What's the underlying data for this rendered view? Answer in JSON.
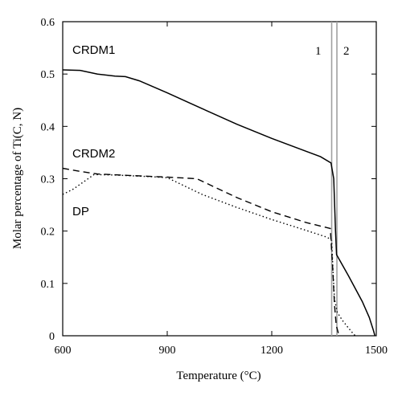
{
  "chart_data": {
    "type": "line",
    "xlabel": "Temperature (°C)",
    "ylabel": "Molar percentage of Ti(C, N)",
    "xlim": [
      600,
      1500
    ],
    "ylim": [
      0,
      0.6
    ],
    "xticks": [
      600,
      900,
      1200,
      1500
    ],
    "xtick_labels": [
      "600",
      "900",
      "1200",
      "1500"
    ],
    "yticks": [
      0,
      0.1,
      0.2,
      0.3,
      0.4,
      0.5,
      0.6
    ],
    "ytick_labels": [
      "0",
      "0.1",
      "0.2",
      "0.3",
      "0.4",
      "0.5",
      "0.6"
    ],
    "grid": false,
    "colors": {
      "axis": "#000000",
      "series": "#000000",
      "vline": "#a0a0a0"
    },
    "series": [
      {
        "name": "CRDM1",
        "style": "solid",
        "points": [
          [
            600,
            0.508
          ],
          [
            650,
            0.507
          ],
          [
            700,
            0.5
          ],
          [
            750,
            0.496
          ],
          [
            780,
            0.495
          ],
          [
            820,
            0.487
          ],
          [
            900,
            0.464
          ],
          [
            1000,
            0.434
          ],
          [
            1100,
            0.404
          ],
          [
            1200,
            0.377
          ],
          [
            1300,
            0.352
          ],
          [
            1340,
            0.342
          ],
          [
            1370,
            0.33
          ],
          [
            1378,
            0.3
          ],
          [
            1383,
            0.2
          ],
          [
            1386,
            0.155
          ],
          [
            1420,
            0.115
          ],
          [
            1460,
            0.065
          ],
          [
            1480,
            0.035
          ],
          [
            1492,
            0.01
          ],
          [
            1496,
            0
          ]
        ]
      },
      {
        "name": "CRDM2",
        "style": "dashed",
        "points": [
          [
            600,
            0.32
          ],
          [
            650,
            0.314
          ],
          [
            700,
            0.309
          ],
          [
            800,
            0.306
          ],
          [
            900,
            0.303
          ],
          [
            985,
            0.3
          ],
          [
            1100,
            0.264
          ],
          [
            1200,
            0.237
          ],
          [
            1300,
            0.216
          ],
          [
            1368,
            0.205
          ],
          [
            1375,
            0.13
          ],
          [
            1380,
            0.06
          ],
          [
            1385,
            0.02
          ],
          [
            1392,
            0.003
          ],
          [
            1396,
            0
          ]
        ]
      },
      {
        "name": "DP",
        "style": "dotted",
        "points": [
          [
            600,
            0.27
          ],
          [
            630,
            0.28
          ],
          [
            690,
            0.308
          ],
          [
            750,
            0.307
          ],
          [
            850,
            0.304
          ],
          [
            900,
            0.302
          ],
          [
            1000,
            0.27
          ],
          [
            1100,
            0.245
          ],
          [
            1200,
            0.222
          ],
          [
            1300,
            0.201
          ],
          [
            1360,
            0.188
          ],
          [
            1372,
            0.182
          ],
          [
            1376,
            0.12
          ],
          [
            1380,
            0.07
          ],
          [
            1388,
            0.045
          ],
          [
            1402,
            0.03
          ],
          [
            1420,
            0.015
          ],
          [
            1435,
            0.003
          ],
          [
            1440,
            0
          ]
        ]
      }
    ],
    "vertical_lines": [
      {
        "x": 1372
      },
      {
        "x": 1387
      }
    ],
    "region_labels": [
      "1",
      "2"
    ]
  }
}
